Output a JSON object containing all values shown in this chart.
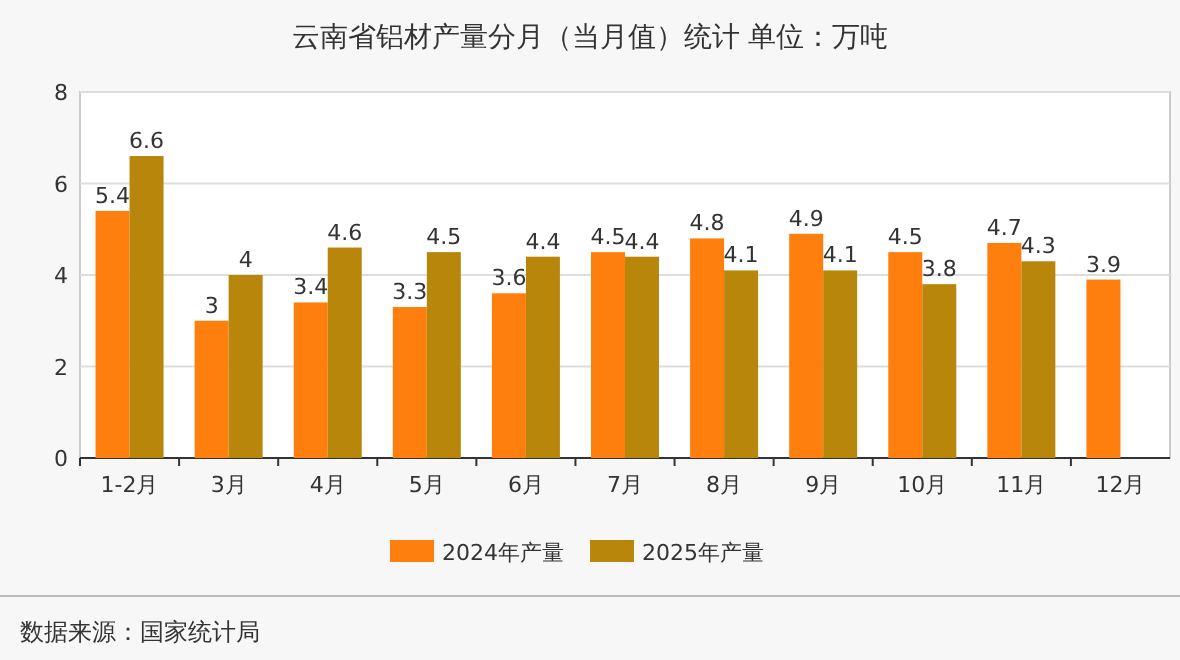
{
  "chart_data": {
    "type": "bar",
    "title": "云南省铝材产量分月（当月值）统计  单位：万吨",
    "categories": [
      "1-2月",
      "3月",
      "4月",
      "5月",
      "6月",
      "7月",
      "8月",
      "9月",
      "10月",
      "11月",
      "12月"
    ],
    "series": [
      {
        "name": "2024年产量",
        "color": "#ff7f0e",
        "values": [
          5.4,
          3,
          3.4,
          3.3,
          3.6,
          4.5,
          4.8,
          4.9,
          4.5,
          4.7,
          3.9
        ]
      },
      {
        "name": "2025年产量",
        "color": "#b8860b",
        "values": [
          6.6,
          4,
          4.6,
          4.5,
          4.4,
          4.4,
          4.1,
          4.1,
          3.8,
          4.3,
          null
        ]
      }
    ],
    "ylim": [
      0,
      8
    ],
    "yticks": [
      0,
      2,
      4,
      6,
      8
    ],
    "grid": "y",
    "legend": "bottom",
    "data_labels": true,
    "annotations": [
      "数据来源：国家统计局"
    ]
  }
}
